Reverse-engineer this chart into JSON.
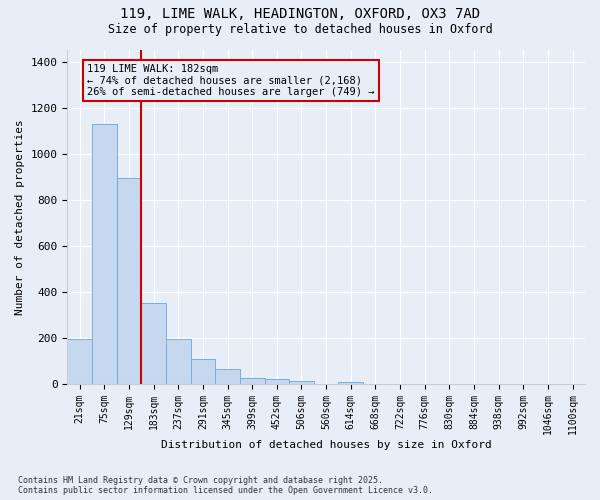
{
  "title1": "119, LIME WALK, HEADINGTON, OXFORD, OX3 7AD",
  "title2": "Size of property relative to detached houses in Oxford",
  "xlabel": "Distribution of detached houses by size in Oxford",
  "ylabel": "Number of detached properties",
  "categories": [
    "21sqm",
    "75sqm",
    "129sqm",
    "183sqm",
    "237sqm",
    "291sqm",
    "345sqm",
    "399sqm",
    "452sqm",
    "506sqm",
    "560sqm",
    "614sqm",
    "668sqm",
    "722sqm",
    "776sqm",
    "830sqm",
    "884sqm",
    "938sqm",
    "992sqm",
    "1046sqm",
    "1100sqm"
  ],
  "values": [
    195,
    1130,
    895,
    350,
    195,
    105,
    62,
    25,
    20,
    12,
    0,
    8,
    0,
    0,
    0,
    0,
    0,
    0,
    0,
    0,
    0
  ],
  "bar_color": "#c5d8f0",
  "bar_edge_color": "#7aadda",
  "vline_x_index": 3,
  "vline_color": "#cc0000",
  "annotation_text": "119 LIME WALK: 182sqm\n← 74% of detached houses are smaller (2,168)\n26% of semi-detached houses are larger (749) →",
  "annotation_box_color": "#cc0000",
  "ylim": [
    0,
    1450
  ],
  "yticks": [
    0,
    200,
    400,
    600,
    800,
    1000,
    1200,
    1400
  ],
  "background_color": "#e8eef8",
  "grid_color": "#ffffff",
  "footer1": "Contains HM Land Registry data © Crown copyright and database right 2025.",
  "footer2": "Contains public sector information licensed under the Open Government Licence v3.0."
}
